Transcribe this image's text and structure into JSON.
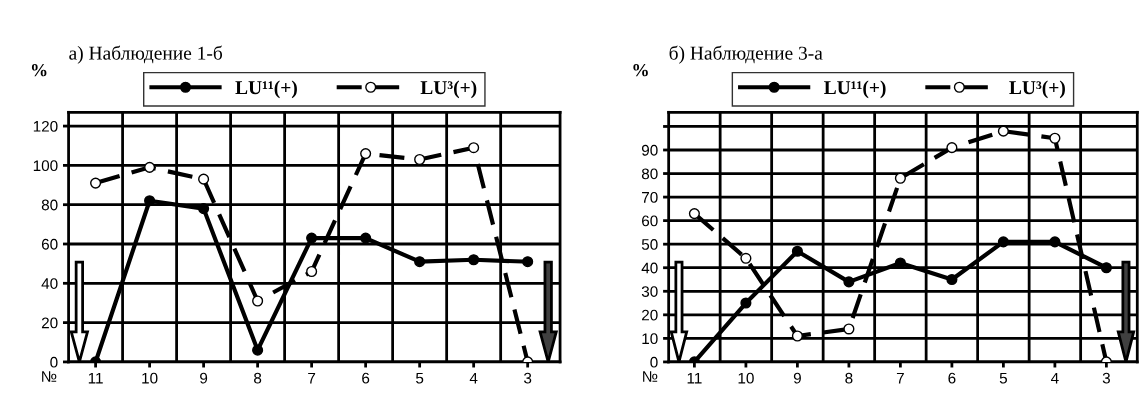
{
  "chart_data": [
    {
      "type": "line",
      "title": "а) Наблюдение 1-б",
      "ylabel": "%",
      "xlabel": "№",
      "categories": [
        "11",
        "10",
        "9",
        "8",
        "7",
        "6",
        "5",
        "4",
        "3"
      ],
      "series": [
        {
          "name": "LU¹¹(+)",
          "color": "#000000",
          "line_style": "solid",
          "marker": "circle",
          "values": [
            0,
            82,
            78,
            6,
            63,
            63,
            51,
            52,
            51
          ]
        },
        {
          "name": "LU³(+)",
          "color": "#000000",
          "line_style": "dashed",
          "marker": "circle",
          "values": [
            91,
            99,
            93,
            31,
            46,
            106,
            103,
            109,
            0
          ]
        }
      ],
      "ylim": [
        0,
        127
      ],
      "yticks": [
        0,
        20,
        40,
        60,
        80,
        100,
        120
      ],
      "grid": true,
      "legend": "top"
    },
    {
      "type": "line",
      "title": "б) Наблюдение 3-а",
      "ylabel": "%",
      "xlabel": "№",
      "categories": [
        "11",
        "10",
        "9",
        "8",
        "7",
        "6",
        "5",
        "4",
        "3"
      ],
      "series": [
        {
          "name": "LU¹¹(+)",
          "color": "#000000",
          "line_style": "solid",
          "marker": "circle",
          "values": [
            0,
            25,
            47,
            34,
            42,
            35,
            51,
            51,
            40
          ]
        },
        {
          "name": "LU³(+)",
          "color": "#000000",
          "line_style": "dashed",
          "marker": "circle",
          "values": [
            63,
            44,
            11,
            14,
            78,
            91,
            98,
            95,
            0
          ]
        }
      ],
      "ylim": [
        0,
        106
      ],
      "yticks": [
        0,
        10,
        20,
        30,
        40,
        50,
        60,
        70,
        80,
        90,
        {
          "value": 100,
          "label": null
        }
      ],
      "grid": true,
      "legend": "top"
    }
  ]
}
